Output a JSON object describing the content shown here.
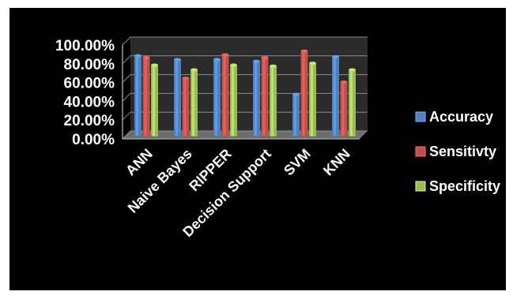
{
  "chart_data": {
    "type": "bar",
    "categories": [
      "ANN",
      "Naive Bayes",
      "RIPPER",
      "Decision Support",
      "SVM",
      "KNN"
    ],
    "series": [
      {
        "name": "Accuracy",
        "values": [
          86,
          82,
          82,
          80,
          45,
          85
        ],
        "color": "#4f81bd"
      },
      {
        "name": "Sensitivty",
        "values": [
          84,
          62,
          87,
          84,
          91,
          58
        ],
        "color": "#c0504d"
      },
      {
        "name": "Specificity",
        "values": [
          76,
          71,
          76,
          75,
          78,
          71
        ],
        "color": "#9bbb59"
      }
    ],
    "yticks": [
      "0.00%",
      "20.00%",
      "40.00%",
      "60.00%",
      "80.00%",
      "100.00%"
    ],
    "ylim": [
      0,
      100
    ],
    "grid": true,
    "legend_position": "right",
    "background": "#000000"
  }
}
